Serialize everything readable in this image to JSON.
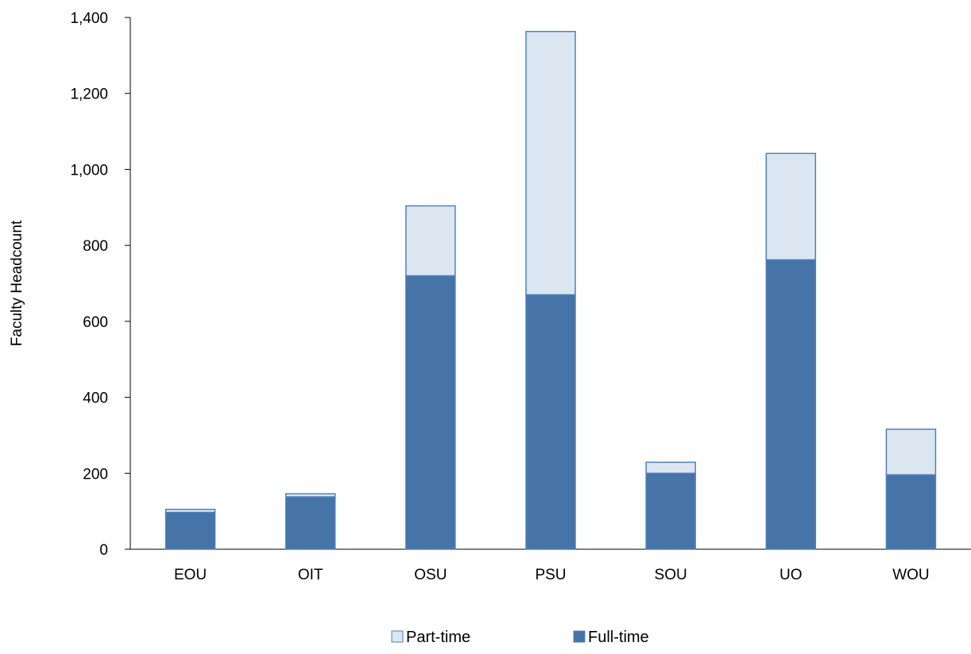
{
  "chart_data": {
    "type": "bar",
    "stacked": true,
    "categories": [
      "EOU",
      "OIT",
      "OSU",
      "PSU",
      "SOU",
      "UO",
      "WOU"
    ],
    "series": [
      {
        "name": "Full-time",
        "values": [
          97,
          138,
          720,
          670,
          200,
          762,
          196
        ],
        "color": "#4673A8"
      },
      {
        "name": "Part-time",
        "values": [
          8,
          8,
          184,
          693,
          29,
          280,
          120
        ],
        "color": "#DCE6F1"
      }
    ],
    "title": "",
    "xlabel": "",
    "ylabel": "Faculty Headcount",
    "ylim": [
      0,
      1400
    ],
    "yticks": [
      0,
      200,
      400,
      600,
      800,
      1000,
      1200,
      1400
    ],
    "ytick_labels": [
      "0",
      "200",
      "400",
      "600",
      "800",
      "1,000",
      "1,200",
      "1,400"
    ],
    "grid": false,
    "legend": {
      "position": "bottom",
      "entries": [
        "Part-time",
        "Full-time"
      ]
    },
    "bar_border_color": "#4F81BD"
  }
}
